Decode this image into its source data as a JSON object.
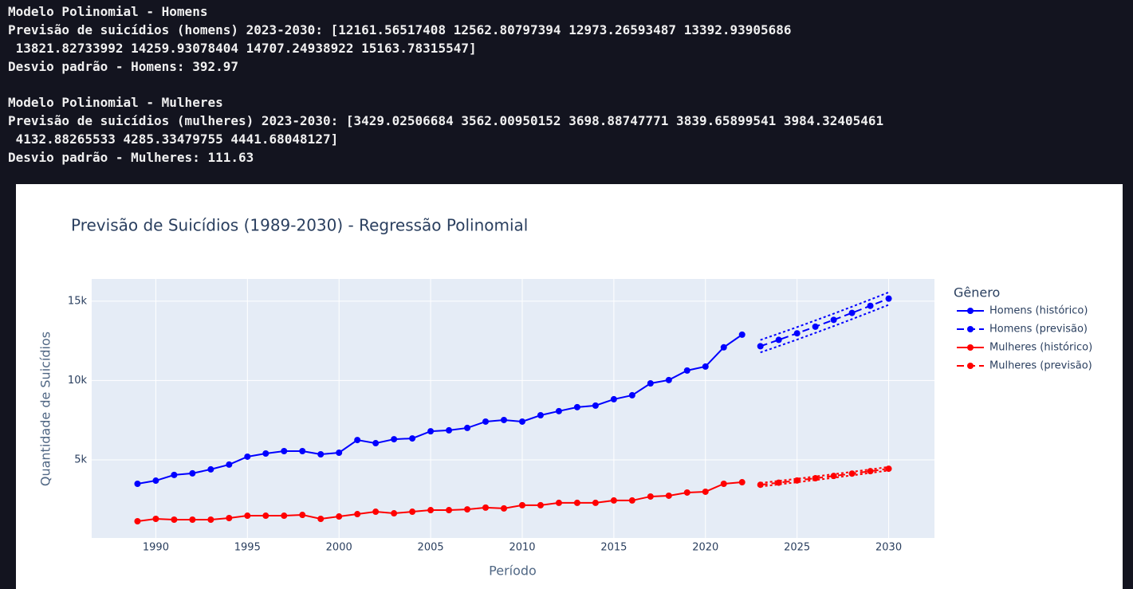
{
  "console": {
    "blocks": [
      {
        "lines": [
          "Modelo Polinomial - Homens",
          "Previsão de suicídios (homens) 2023-2030: [12161.56517408 12562.80797394 12973.26593487 13392.93905686",
          " 13821.82733992 14259.93078404 14707.24938922 15163.78315547]",
          "Desvio padrão - Homens: 392.97"
        ]
      },
      {
        "lines": [
          "Modelo Polinomial - Mulheres",
          "Previsão de suicídios (mulheres) 2023-2030: [3429.02506684 3562.00950152 3698.88747771 3839.65899541 3984.32405461",
          " 4132.88265533 4285.33479755 4441.68048127]",
          "Desvio padrão - Mulheres: 111.63"
        ]
      }
    ]
  },
  "chart_data": {
    "type": "line",
    "title": "Previsão de Suicídios (1989-2030) - Regressão Polinomial",
    "x_label": "Período",
    "y_label": "Quantidade de Suicídios",
    "legend_title": "Gênero",
    "legend_position": "right",
    "grid": true,
    "xlim": [
      1986.5,
      2032.5
    ],
    "xticks": [
      1990,
      1995,
      2000,
      2005,
      2010,
      2015,
      2020,
      2025,
      2030
    ],
    "ylim": [
      75,
      16400
    ],
    "yticks": [
      {
        "value": 5000,
        "label": "5k"
      },
      {
        "value": 10000,
        "label": "10k"
      },
      {
        "value": 15000,
        "label": "15k"
      }
    ],
    "series": [
      {
        "name": "Homens (histórico)",
        "color": "#0000ff",
        "dash": "solid",
        "x": [
          1989,
          1990,
          1991,
          1992,
          1993,
          1994,
          1995,
          1996,
          1997,
          1998,
          1999,
          2000,
          2001,
          2002,
          2003,
          2004,
          2005,
          2006,
          2007,
          2008,
          2009,
          2010,
          2011,
          2012,
          2013,
          2014,
          2015,
          2016,
          2017,
          2018,
          2019,
          2020,
          2021,
          2022
        ],
        "values": [
          3490,
          3690,
          4050,
          4150,
          4400,
          4700,
          5200,
          5400,
          5550,
          5550,
          5350,
          5450,
          6250,
          6050,
          6300,
          6350,
          6800,
          6860,
          7010,
          7410,
          7510,
          7410,
          7810,
          8070,
          8320,
          8420,
          8820,
          9070,
          9820,
          10030,
          10630,
          10880,
          12090,
          12890
        ]
      },
      {
        "name": "Homens (previsão)",
        "color": "#0000ff",
        "dash": "dash",
        "x": [
          2023,
          2024,
          2025,
          2026,
          2027,
          2028,
          2029,
          2030
        ],
        "values": [
          12161.57,
          12562.81,
          12973.27,
          13392.94,
          13821.83,
          14259.93,
          14707.25,
          15163.78
        ]
      },
      {
        "name": "Mulheres (histórico)",
        "color": "#ff0000",
        "dash": "solid",
        "x": [
          1989,
          1990,
          1991,
          1992,
          1993,
          1994,
          1995,
          1996,
          1997,
          1998,
          1999,
          2000,
          2001,
          2002,
          2003,
          2004,
          2005,
          2006,
          2007,
          2008,
          2009,
          2010,
          2011,
          2012,
          2013,
          2014,
          2015,
          2016,
          2017,
          2018,
          2019,
          2020,
          2021,
          2022
        ],
        "values": [
          1130,
          1280,
          1230,
          1230,
          1230,
          1330,
          1480,
          1480,
          1480,
          1530,
          1280,
          1430,
          1580,
          1730,
          1630,
          1730,
          1830,
          1830,
          1880,
          1990,
          1940,
          2140,
          2140,
          2290,
          2290,
          2290,
          2440,
          2440,
          2690,
          2740,
          2940,
          2990,
          3490,
          3590
        ]
      },
      {
        "name": "Mulheres (previsão)",
        "color": "#ff0000",
        "dash": "dash",
        "x": [
          2023,
          2024,
          2025,
          2026,
          2027,
          2028,
          2029,
          2030
        ],
        "values": [
          3429.03,
          3562.01,
          3698.89,
          3839.66,
          3984.32,
          4132.88,
          4285.33,
          4441.68
        ]
      }
    ],
    "bands": [
      {
        "color": "#0000ff",
        "x": [
          2023,
          2024,
          2025,
          2026,
          2027,
          2028,
          2029,
          2030
        ],
        "values": [
          12554.54,
          12955.78,
          13366.24,
          13785.91,
          14214.8,
          14652.9,
          15100.22,
          15556.75
        ]
      },
      {
        "color": "#0000ff",
        "x": [
          2023,
          2024,
          2025,
          2026,
          2027,
          2028,
          2029,
          2030
        ],
        "values": [
          11768.6,
          12169.84,
          12580.3,
          12999.97,
          13428.86,
          13866.96,
          14314.28,
          14770.81
        ]
      },
      {
        "color": "#ff0000",
        "x": [
          2023,
          2024,
          2025,
          2026,
          2027,
          2028,
          2029,
          2030
        ],
        "values": [
          3540.66,
          3673.64,
          3810.52,
          3951.29,
          4095.95,
          4244.51,
          4396.96,
          4553.31
        ]
      },
      {
        "color": "#ff0000",
        "x": [
          2023,
          2024,
          2025,
          2026,
          2027,
          2028,
          2029,
          2030
        ],
        "values": [
          3317.4,
          3450.38,
          3587.26,
          3728.03,
          3872.69,
          4021.25,
          4173.7,
          4330.05
        ]
      }
    ]
  }
}
